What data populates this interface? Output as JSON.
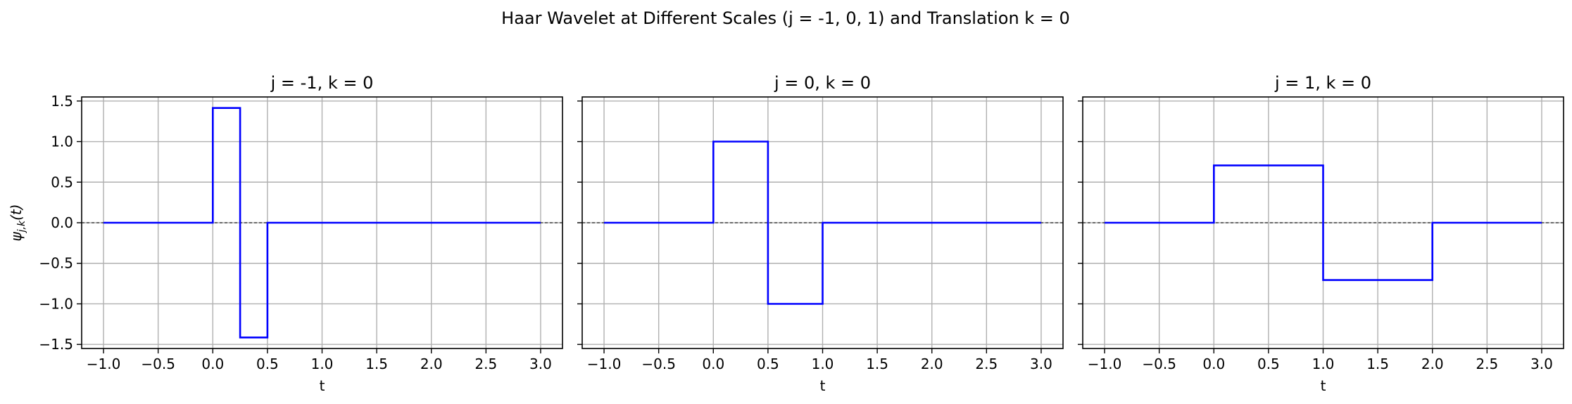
{
  "figure": {
    "suptitle": "Haar Wavelet at Different Scales (j = -1, 0, 1) and Translation k = 0",
    "shared_ylabel": "ψ_{j,k}(t)"
  },
  "colors": {
    "line": "#0000ff",
    "grid": "#b0b0b0",
    "zero_line": "#000000",
    "axes": "#000000"
  },
  "chart_data": [
    {
      "type": "line",
      "title": "j = -1, k = 0",
      "xlabel": "t",
      "ylabel": "ψ_{j,k}(t)",
      "xlim": [
        -1.2,
        3.2
      ],
      "ylim": [
        -1.55,
        1.55
      ],
      "xticks": [
        -1.0,
        -0.5,
        0.0,
        0.5,
        1.0,
        1.5,
        2.0,
        2.5,
        3.0
      ],
      "xtick_labels": [
        "−1.0",
        "−0.5",
        "0.0",
        "0.5",
        "1.0",
        "1.5",
        "2.0",
        "2.5",
        "3.0"
      ],
      "yticks": [
        1.5,
        1.0,
        0.5,
        0.0,
        -0.5,
        -1.0,
        -1.5
      ],
      "ytick_labels": [
        "1.5",
        "1.0",
        "0.5",
        "0.0",
        "−0.5",
        "−1.0",
        "−1.5"
      ],
      "grid": true,
      "zero_line": true,
      "series": [
        {
          "x": [
            -1,
            0,
            0,
            0.25,
            0.25,
            0.5,
            0.5,
            3
          ],
          "y": [
            0,
            0,
            1.414,
            1.414,
            -1.414,
            -1.414,
            0,
            0
          ]
        }
      ]
    },
    {
      "type": "line",
      "title": "j = 0, k = 0",
      "xlabel": "t",
      "xlim": [
        -1.2,
        3.2
      ],
      "ylim": [
        -1.55,
        1.55
      ],
      "xticks": [
        -1.0,
        -0.5,
        0.0,
        0.5,
        1.0,
        1.5,
        2.0,
        2.5,
        3.0
      ],
      "xtick_labels": [
        "−1.0",
        "−0.5",
        "0.0",
        "0.5",
        "1.0",
        "1.5",
        "2.0",
        "2.5",
        "3.0"
      ],
      "yticks": [
        1.5,
        1.0,
        0.5,
        0.0,
        -0.5,
        -1.0,
        -1.5
      ],
      "grid": true,
      "zero_line": true,
      "series": [
        {
          "x": [
            -1,
            0,
            0,
            0.5,
            0.5,
            1,
            1,
            3
          ],
          "y": [
            0,
            0,
            1,
            1,
            -1,
            -1,
            0,
            0
          ]
        }
      ]
    },
    {
      "type": "line",
      "title": "j = 1, k = 0",
      "xlabel": "t",
      "xlim": [
        -1.2,
        3.2
      ],
      "ylim": [
        -1.55,
        1.55
      ],
      "xticks": [
        -1.0,
        -0.5,
        0.0,
        0.5,
        1.0,
        1.5,
        2.0,
        2.5,
        3.0
      ],
      "xtick_labels": [
        "−1.0",
        "−0.5",
        "0.0",
        "0.5",
        "1.0",
        "1.5",
        "2.0",
        "2.5",
        "3.0"
      ],
      "yticks": [
        1.5,
        1.0,
        0.5,
        0.0,
        -0.5,
        -1.0,
        -1.5
      ],
      "grid": true,
      "zero_line": true,
      "series": [
        {
          "x": [
            -1,
            0,
            0,
            1,
            1,
            2,
            2,
            3
          ],
          "y": [
            0,
            0,
            0.707,
            0.707,
            -0.707,
            -0.707,
            0,
            0
          ]
        }
      ]
    }
  ]
}
